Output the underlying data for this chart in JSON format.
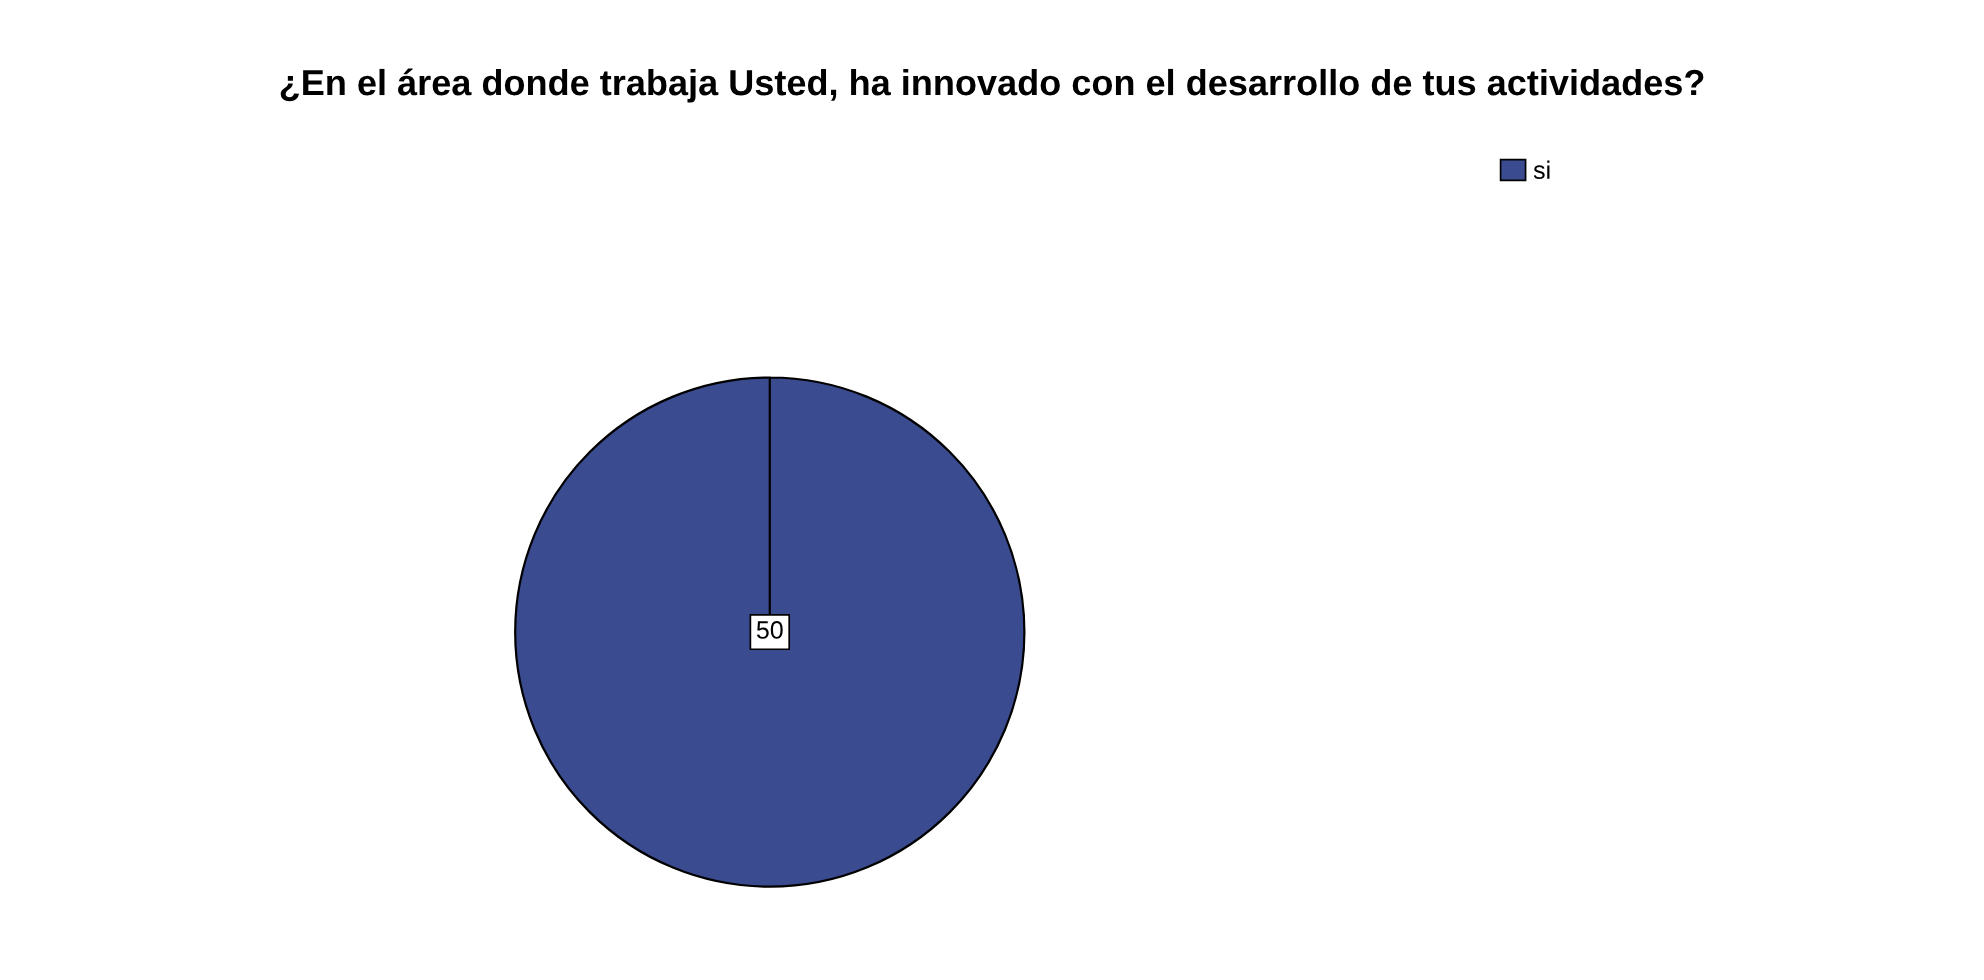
{
  "chart_data": {
    "type": "pie",
    "title": "¿En el área donde trabaja Usted, ha innovado con el desarrollo de tus actividades?",
    "categories": [
      "si"
    ],
    "values": [
      50
    ],
    "colors": [
      "#3a4b8f"
    ],
    "data_labels": true,
    "legend": "top right"
  }
}
